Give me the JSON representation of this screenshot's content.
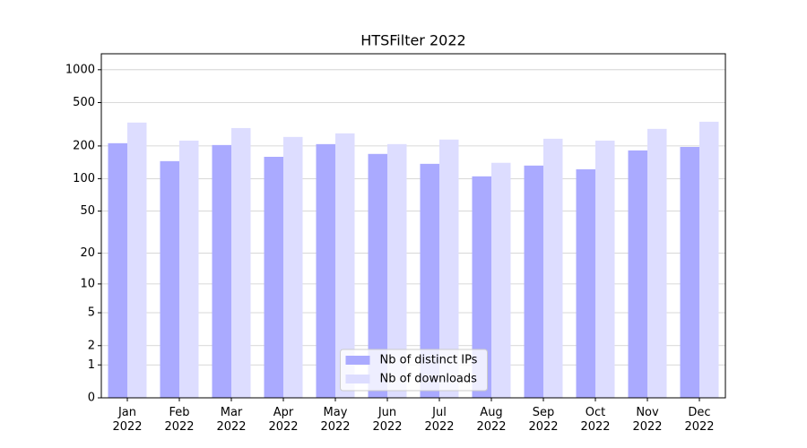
{
  "chart_data": {
    "type": "bar",
    "title": "HTSFilter 2022",
    "categories": [
      "Jan\n2022",
      "Feb\n2022",
      "Mar\n2022",
      "Apr\n2022",
      "May\n2022",
      "Jun\n2022",
      "Jul\n2022",
      "Aug\n2022",
      "Sep\n2022",
      "Oct\n2022",
      "Nov\n2022",
      "Dec\n2022"
    ],
    "series": [
      {
        "name": "Nb of distinct IPs",
        "color": "#aaaaff",
        "values": [
          212,
          145,
          204,
          159,
          208,
          169,
          137,
          105,
          132,
          122,
          182,
          196
        ]
      },
      {
        "name": "Nb of downloads",
        "color": "#ddddff",
        "values": [
          328,
          224,
          292,
          242,
          261,
          208,
          229,
          140,
          233,
          224,
          287,
          334
        ]
      }
    ],
    "yscale": "log1p",
    "ylim": [
      0,
      1400
    ],
    "yticks": [
      0,
      1,
      2,
      5,
      10,
      20,
      50,
      100,
      200,
      500,
      1000
    ],
    "grid": true,
    "legend": "lower center"
  }
}
